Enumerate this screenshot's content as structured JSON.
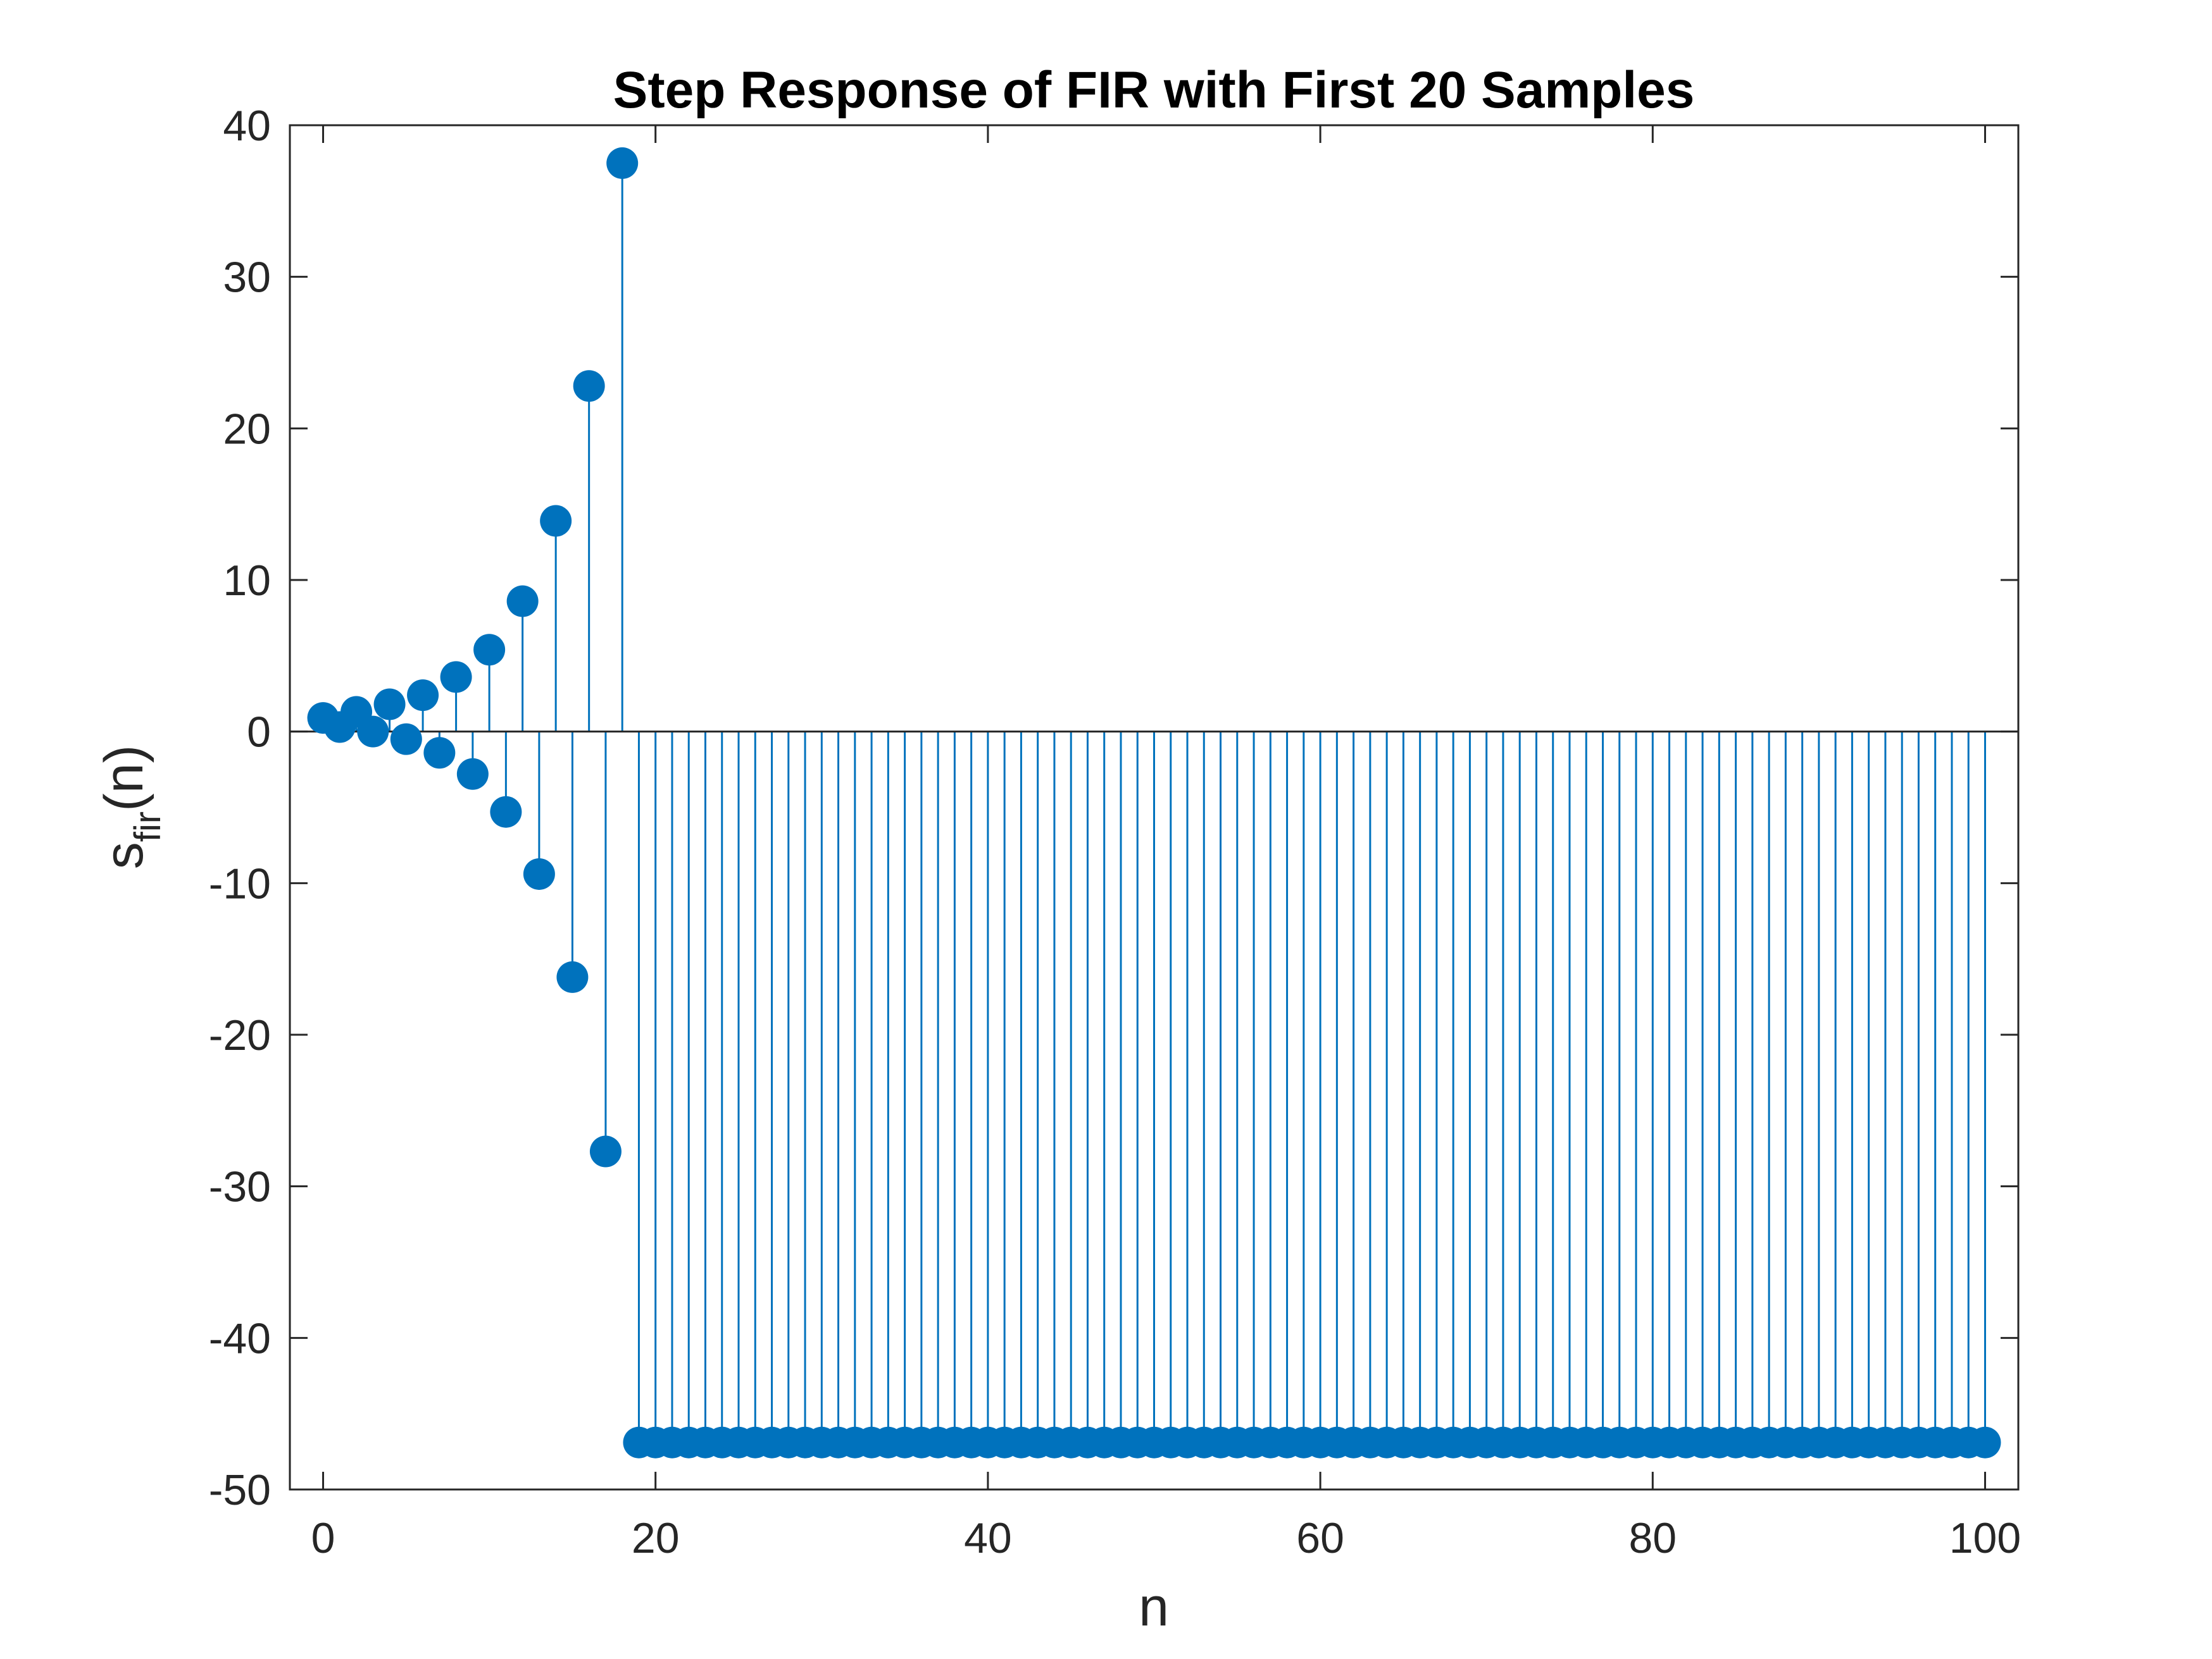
{
  "chart_data": {
    "type": "stem",
    "title": "Step Response of FIR with First 20 Samples",
    "xlabel": "n",
    "ylabel": {
      "base": "s",
      "subscript": "fir",
      "suffix": "(n)"
    },
    "xlim": [
      -2,
      102
    ],
    "ylim": [
      -50,
      40
    ],
    "xticks": [
      0,
      20,
      40,
      60,
      80,
      100
    ],
    "yticks": [
      -50,
      -40,
      -30,
      -20,
      -10,
      0,
      10,
      20,
      30,
      40
    ],
    "grid": false,
    "box": true,
    "color": "#0072BD",
    "series": [
      {
        "x": [
          0,
          1,
          2,
          3,
          4,
          5,
          6,
          7,
          8,
          9,
          10,
          11,
          12,
          13,
          14,
          15,
          16,
          17,
          18,
          19,
          20,
          21,
          22,
          23,
          24,
          25,
          26,
          27,
          28,
          29,
          30,
          31,
          32,
          33,
          34,
          35,
          36,
          37,
          38,
          39,
          40,
          41,
          42,
          43,
          44,
          45,
          46,
          47,
          48,
          49,
          50,
          51,
          52,
          53,
          54,
          55,
          56,
          57,
          58,
          59,
          60,
          61,
          62,
          63,
          64,
          65,
          66,
          67,
          68,
          69,
          70,
          71,
          72,
          73,
          74,
          75,
          76,
          77,
          78,
          79,
          80,
          81,
          82,
          83,
          84,
          85,
          86,
          87,
          88,
          89,
          90,
          91,
          92,
          93,
          94,
          95,
          96,
          97,
          98,
          99,
          100
        ],
        "y": [
          0.9,
          0.3,
          1.3,
          0.0,
          1.8,
          -0.5,
          2.4,
          -1.4,
          3.6,
          -2.8,
          5.4,
          -5.3,
          8.6,
          -9.4,
          13.9,
          -16.2,
          22.8,
          -27.7,
          37.5,
          -46.9,
          -46.9,
          -46.9,
          -46.9,
          -46.9,
          -46.9,
          -46.9,
          -46.9,
          -46.9,
          -46.9,
          -46.9,
          -46.9,
          -46.9,
          -46.9,
          -46.9,
          -46.9,
          -46.9,
          -46.9,
          -46.9,
          -46.9,
          -46.9,
          -46.9,
          -46.9,
          -46.9,
          -46.9,
          -46.9,
          -46.9,
          -46.9,
          -46.9,
          -46.9,
          -46.9,
          -46.9,
          -46.9,
          -46.9,
          -46.9,
          -46.9,
          -46.9,
          -46.9,
          -46.9,
          -46.9,
          -46.9,
          -46.9,
          -46.9,
          -46.9,
          -46.9,
          -46.9,
          -46.9,
          -46.9,
          -46.9,
          -46.9,
          -46.9,
          -46.9,
          -46.9,
          -46.9,
          -46.9,
          -46.9,
          -46.9,
          -46.9,
          -46.9,
          -46.9,
          -46.9,
          -46.9,
          -46.9,
          -46.9,
          -46.9,
          -46.9,
          -46.9,
          -46.9,
          -46.9,
          -46.9,
          -46.9,
          -46.9,
          -46.9,
          -46.9,
          -46.9,
          -46.9,
          -46.9,
          -46.9,
          -46.9,
          -46.9,
          -46.9,
          -46.9
        ]
      }
    ]
  }
}
